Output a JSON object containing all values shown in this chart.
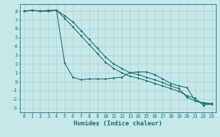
{
  "xlabel": "Humidex (Indice chaleur)",
  "ylabel": "",
  "bg_color": "#c5e8e8",
  "grid_color": "#a8d0d0",
  "line_color": "#1a6b6b",
  "xlim": [
    -0.5,
    23.5
  ],
  "ylim": [
    -3.5,
    8.8
  ],
  "xticks": [
    0,
    1,
    2,
    3,
    4,
    5,
    6,
    7,
    8,
    9,
    10,
    11,
    12,
    13,
    14,
    15,
    16,
    17,
    18,
    19,
    20,
    21,
    22,
    23
  ],
  "yticks": [
    -3,
    -2,
    -1,
    0,
    1,
    2,
    3,
    4,
    5,
    6,
    7,
    8
  ],
  "line1_x": [
    0,
    1,
    2,
    3,
    4,
    5,
    6,
    7,
    8,
    9,
    10,
    11,
    12,
    13,
    14,
    15,
    16,
    17,
    18,
    19,
    20,
    21,
    22,
    23
  ],
  "line1_y": [
    8.0,
    8.1,
    8.0,
    8.1,
    8.1,
    2.1,
    0.5,
    0.2,
    0.3,
    0.3,
    0.3,
    0.4,
    0.5,
    1.0,
    1.1,
    1.1,
    0.8,
    0.3,
    -0.2,
    -0.5,
    -0.7,
    -2.2,
    -2.5,
    -2.6
  ],
  "line2_x": [
    0,
    1,
    2,
    3,
    4,
    5,
    6,
    7,
    8,
    9,
    10,
    11,
    12,
    13,
    14,
    15,
    16,
    17,
    18,
    19,
    20,
    21,
    22,
    23
  ],
  "line2_y": [
    8.0,
    8.1,
    8.0,
    8.0,
    8.1,
    7.5,
    6.8,
    5.8,
    4.8,
    3.8,
    2.8,
    2.0,
    1.5,
    1.0,
    0.8,
    0.5,
    0.2,
    -0.1,
    -0.5,
    -0.8,
    -1.8,
    -2.2,
    -2.4,
    -2.5
  ],
  "line3_x": [
    0,
    1,
    2,
    3,
    4,
    5,
    6,
    7,
    8,
    9,
    10,
    11,
    12,
    13,
    14,
    15,
    16,
    17,
    18,
    19,
    20,
    21,
    22,
    23
  ],
  "line3_y": [
    8.0,
    8.1,
    8.0,
    8.0,
    8.1,
    7.2,
    6.2,
    5.2,
    4.2,
    3.2,
    2.2,
    1.5,
    1.0,
    0.6,
    0.4,
    0.1,
    -0.2,
    -0.5,
    -0.8,
    -1.1,
    -1.6,
    -1.9,
    -2.7,
    -2.5
  ],
  "marker": "D",
  "markersize": 1.8,
  "linewidth": 0.8,
  "tick_fontsize": 5.0,
  "xlabel_fontsize": 6.5
}
